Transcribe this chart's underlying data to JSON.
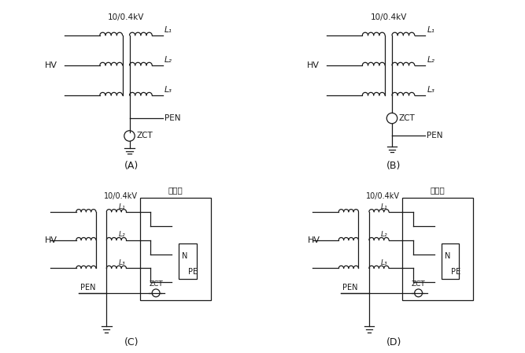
{
  "bg_color": "#ffffff",
  "line_color": "#1a1a1a",
  "lw": 0.9,
  "title_A": "(A)",
  "title_B": "(B)",
  "title_C": "(C)",
  "title_D": "(D)",
  "label_transformer": "10/0.4kV",
  "label_HV": "HV",
  "label_L1": "L₁",
  "label_L2": "L₂",
  "label_L3": "L₃",
  "label_PEN": "PEN",
  "label_ZCT": "ZCT",
  "label_N": "N",
  "label_PE": "PE",
  "label_switchboard": "开关柜"
}
